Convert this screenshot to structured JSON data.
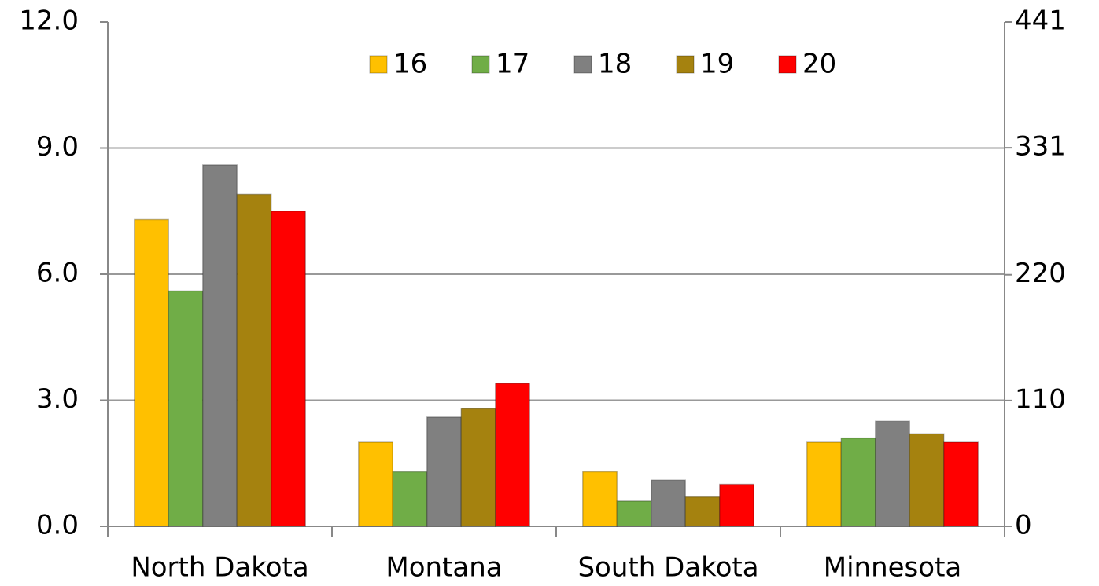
{
  "chart_data": {
    "type": "bar",
    "categories": [
      "North Dakota",
      "Montana",
      "South Dakota",
      "Minnesota"
    ],
    "series": [
      {
        "name": "16",
        "color": "#FFC000",
        "values": [
          7.3,
          2.0,
          1.3,
          2.0
        ]
      },
      {
        "name": "17",
        "color": "#70AD47",
        "values": [
          5.6,
          1.3,
          0.6,
          2.1
        ]
      },
      {
        "name": "18",
        "color": "#808080",
        "values": [
          8.6,
          2.6,
          1.1,
          2.5
        ]
      },
      {
        "name": "19",
        "color": "#A5820F",
        "values": [
          7.9,
          2.8,
          0.7,
          2.2
        ]
      },
      {
        "name": "20",
        "color": "#FF0000",
        "values": [
          7.5,
          3.4,
          1.0,
          2.0
        ]
      }
    ],
    "ylim": [
      0,
      12
    ],
    "yticks": [
      {
        "value": 0,
        "label": "0.0"
      },
      {
        "value": 3,
        "label": "3.0"
      },
      {
        "value": 6,
        "label": "6.0"
      },
      {
        "value": 9,
        "label": "9.0"
      },
      {
        "value": 12,
        "label": "12.0"
      }
    ],
    "y2lim": [
      0,
      441
    ],
    "y2ticks": [
      0,
      110,
      220,
      331,
      441
    ],
    "grid": true,
    "legend": "top"
  }
}
